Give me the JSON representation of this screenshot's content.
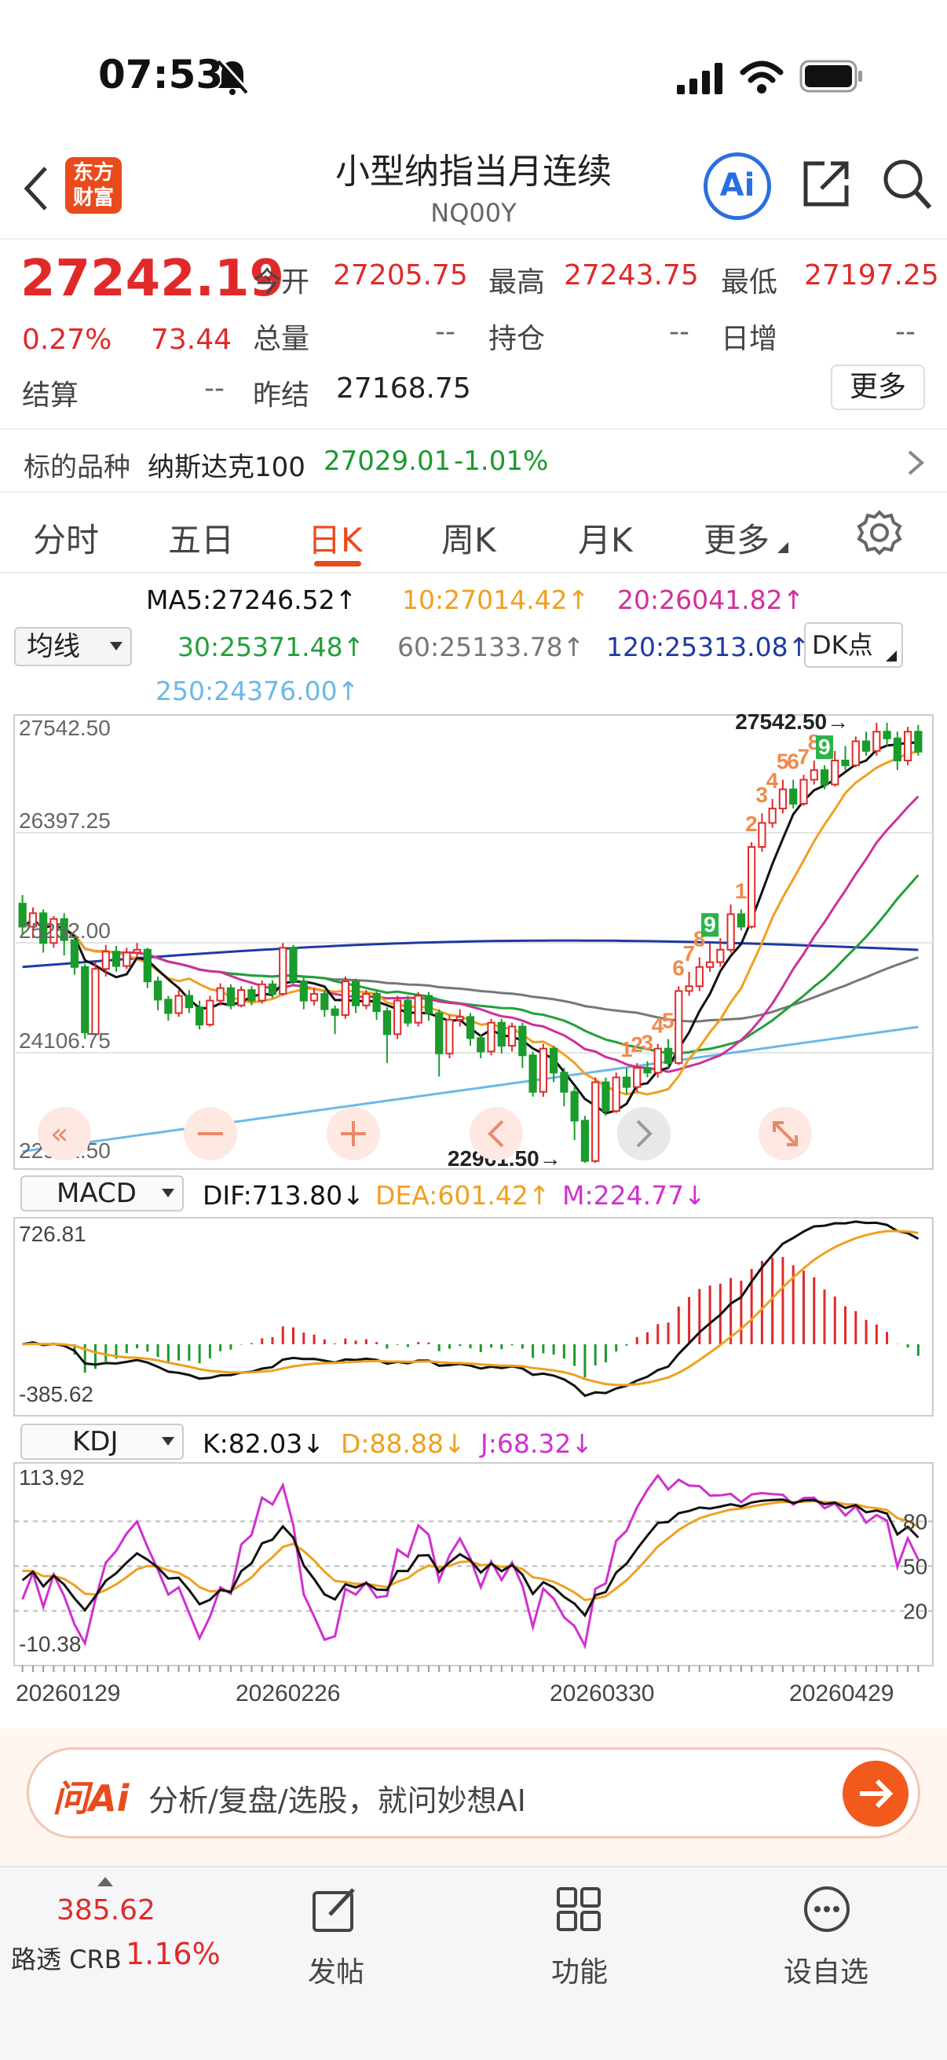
{
  "status_bar": {
    "time": "07:53"
  },
  "header": {
    "title": "小型纳指当月连续",
    "code": "NQ00Y",
    "logo_text_1": "东方",
    "logo_text_2": "财富",
    "ai_label": "Ai"
  },
  "quote": {
    "last_price": "27242.19",
    "change_pct": "0.27%",
    "change": "73.44",
    "open_label": "今开",
    "open": "27205.75",
    "high_label": "最高",
    "high": "27243.75",
    "low_label": "最低",
    "low": "27197.25",
    "volume_label": "总量",
    "volume": "--",
    "oi_label": "持仓",
    "oi": "--",
    "daily_inc_label": "日增",
    "daily_inc": "--",
    "settle_label": "结算",
    "settle": "--",
    "prev_settle_label": "昨结",
    "prev_settle": "27168.75",
    "more_button": "更多"
  },
  "underlying": {
    "label": "标的品种",
    "name": "纳斯达克100",
    "price": "27029.01",
    "change_pct": "-1.01%"
  },
  "tabs": [
    {
      "label": "分时"
    },
    {
      "label": "五日"
    },
    {
      "label": "日K"
    },
    {
      "label": "周K"
    },
    {
      "label": "月K"
    },
    {
      "label": "更多"
    }
  ],
  "ma_legend": {
    "selector": "均线",
    "ma5": "MA5:27246.52↑",
    "ma10": "10:27014.42↑",
    "ma20": "20:26041.82↑",
    "ma30": "30:25371.48↑",
    "ma60": "60:25133.78↑",
    "ma120": "120:25313.08↑",
    "ma250": "250:24376.00↑",
    "dk_button": "DK点"
  },
  "colors": {
    "up": "#e02a2a",
    "down": "#1a9b2c",
    "ma5": "#111111",
    "ma10": "#f0a020",
    "ma20": "#d0309a",
    "ma30": "#22a03a",
    "ma60": "#777777",
    "ma120": "#1f3aa0",
    "ma250": "#6cb8e6",
    "accent": "#e94b1d"
  },
  "macd_legend": {
    "selector": "MACD",
    "dif": "DIF:713.80↓",
    "dea": "DEA:601.42↑",
    "m": "M:224.77↓"
  },
  "kdj_legend": {
    "selector": "KDJ",
    "k": "K:82.03↓",
    "d": "D:88.88↓",
    "j": "J:68.32↓"
  },
  "chart_data": [
    {
      "type": "candlestick",
      "y_axis_labels": [
        "27542.50",
        "26397.25",
        "25252.00",
        "24106.75",
        "22961.50"
      ],
      "ylim": [
        22961.5,
        27542.5
      ],
      "max_marker": "27542.50",
      "min_marker": "22961.50",
      "x_labels": [
        "20260129",
        "20260226",
        "20260330",
        "20260429"
      ],
      "td_counts": [
        "1",
        "2",
        "3",
        "4",
        "5",
        "6",
        "7",
        "8",
        "9",
        "1",
        "2",
        "3",
        "4",
        "5",
        "6",
        "7",
        "8",
        "9"
      ],
      "candles": [
        [
          25660,
          25420,
          25750,
          25330
        ],
        [
          25420,
          25560,
          25620,
          25300
        ],
        [
          25560,
          25250,
          25600,
          25150
        ],
        [
          25250,
          25500,
          25530,
          25200
        ],
        [
          25500,
          25280,
          25560,
          25120
        ],
        [
          25280,
          25000,
          25320,
          24920
        ],
        [
          25000,
          24320,
          25030,
          24250
        ],
        [
          24300,
          24980,
          25050,
          24280
        ],
        [
          24980,
          25160,
          25230,
          24900
        ],
        [
          25160,
          25010,
          25220,
          24950
        ],
        [
          25010,
          25150,
          25200,
          24980
        ],
        [
          25150,
          25180,
          25250,
          25100
        ],
        [
          25180,
          24850,
          25200,
          24780
        ],
        [
          24850,
          24660,
          24900,
          24550
        ],
        [
          24660,
          24520,
          24700,
          24440
        ],
        [
          24520,
          24700,
          24760,
          24480
        ],
        [
          24700,
          24580,
          24760,
          24520
        ],
        [
          24580,
          24400,
          24650,
          24350
        ],
        [
          24400,
          24650,
          24700,
          24380
        ],
        [
          24650,
          24780,
          24830,
          24600
        ],
        [
          24780,
          24600,
          24820,
          24560
        ],
        [
          24600,
          24760,
          24800,
          24580
        ],
        [
          24760,
          24650,
          24800,
          24600
        ],
        [
          24650,
          24820,
          24860,
          24620
        ],
        [
          24820,
          24720,
          24860,
          24680
        ],
        [
          24720,
          25200,
          25250,
          24700
        ],
        [
          25200,
          24850,
          25230,
          24800
        ],
        [
          24850,
          24650,
          24900,
          24560
        ],
        [
          24650,
          24720,
          24780,
          24600
        ],
        [
          24720,
          24560,
          24760,
          24480
        ],
        [
          24560,
          24500,
          24600,
          24300
        ],
        [
          24500,
          24850,
          24900,
          24460
        ],
        [
          24850,
          24600,
          24880,
          24520
        ],
        [
          24600,
          24720,
          24760,
          24560
        ],
        [
          24720,
          24540,
          24760,
          24450
        ],
        [
          24540,
          24300,
          24580,
          24000
        ],
        [
          24300,
          24650,
          24700,
          24250
        ],
        [
          24650,
          24420,
          24700,
          24380
        ],
        [
          24420,
          24700,
          24740,
          24380
        ],
        [
          24700,
          24520,
          24740,
          24440
        ],
        [
          24520,
          24100,
          24560,
          23860
        ],
        [
          24100,
          24450,
          24500,
          24050
        ],
        [
          24450,
          24480,
          24560,
          24380
        ],
        [
          24480,
          24260,
          24520,
          24180
        ],
        [
          24260,
          24120,
          24300,
          24050
        ],
        [
          24120,
          24420,
          24460,
          24080
        ],
        [
          24420,
          24180,
          24460,
          24100
        ],
        [
          24180,
          24380,
          24420,
          24120
        ],
        [
          24380,
          24080,
          24420,
          23950
        ],
        [
          24080,
          23700,
          24120,
          23650
        ],
        [
          23700,
          24150,
          24200,
          23650
        ],
        [
          24150,
          23900,
          24180,
          23800
        ],
        [
          23900,
          23700,
          23950,
          23550
        ],
        [
          23700,
          23400,
          23750,
          23200
        ],
        [
          23400,
          22980,
          23450,
          22961.5
        ],
        [
          22980,
          23800,
          23850,
          22961.5
        ],
        [
          23800,
          23500,
          23850,
          23450
        ],
        [
          23500,
          23850,
          23900,
          23480
        ],
        [
          23850,
          23750,
          23950,
          23680
        ],
        [
          23750,
          23950,
          24000,
          23700
        ],
        [
          23950,
          23900,
          24020,
          23850
        ],
        [
          23900,
          24150,
          24200,
          23850
        ],
        [
          24150,
          24000,
          24250,
          23950
        ],
        [
          24000,
          24750,
          24800,
          23980
        ],
        [
          24750,
          24800,
          24950,
          24700
        ],
        [
          24800,
          25000,
          25100,
          24750
        ],
        [
          25000,
          25050,
          25250,
          24950
        ],
        [
          25050,
          25180,
          25300,
          25000
        ],
        [
          25180,
          25550,
          25650,
          25150
        ],
        [
          25550,
          25420,
          25600,
          25380
        ],
        [
          25420,
          26250,
          26300,
          25400
        ],
        [
          26250,
          26500,
          26600,
          26200
        ],
        [
          26500,
          26650,
          26750,
          26450
        ],
        [
          26650,
          26850,
          26950,
          26600
        ],
        [
          26850,
          26700,
          26950,
          26650
        ],
        [
          26700,
          26950,
          27000,
          26680
        ],
        [
          26950,
          27050,
          27150,
          26900
        ],
        [
          27050,
          26900,
          27100,
          26850
        ],
        [
          26900,
          27150,
          27250,
          26880
        ],
        [
          27150,
          27100,
          27300,
          27050
        ],
        [
          27100,
          27350,
          27400,
          27080
        ],
        [
          27350,
          27250,
          27450,
          27200
        ],
        [
          27250,
          27450,
          27542.5,
          27200
        ],
        [
          27450,
          27380,
          27542.5,
          27300
        ],
        [
          27380,
          27150,
          27450,
          27050
        ],
        [
          27150,
          27450,
          27500,
          27100
        ],
        [
          27450,
          27242,
          27520,
          27200
        ]
      ]
    },
    {
      "type": "bar+line",
      "name": "MACD",
      "y_axis_labels": [
        "726.81",
        "-385.62"
      ],
      "ylim": [
        -385.62,
        726.81
      ]
    },
    {
      "type": "line",
      "name": "KDJ",
      "y_axis_labels": [
        "113.92",
        "80",
        "50",
        "20",
        "-10.38"
      ],
      "ylim": [
        -10.38,
        113.92
      ]
    }
  ],
  "ai_bar": {
    "brand": "问Ai",
    "placeholder": "分析/复盘/选股，就问妙想AI"
  },
  "bottom_nav": {
    "ticker_value": "385.62",
    "ticker_name": "路透 CRB",
    "ticker_change": "1.16%",
    "items": [
      {
        "label": "发帖"
      },
      {
        "label": "功能"
      },
      {
        "label": "设自选"
      }
    ]
  }
}
